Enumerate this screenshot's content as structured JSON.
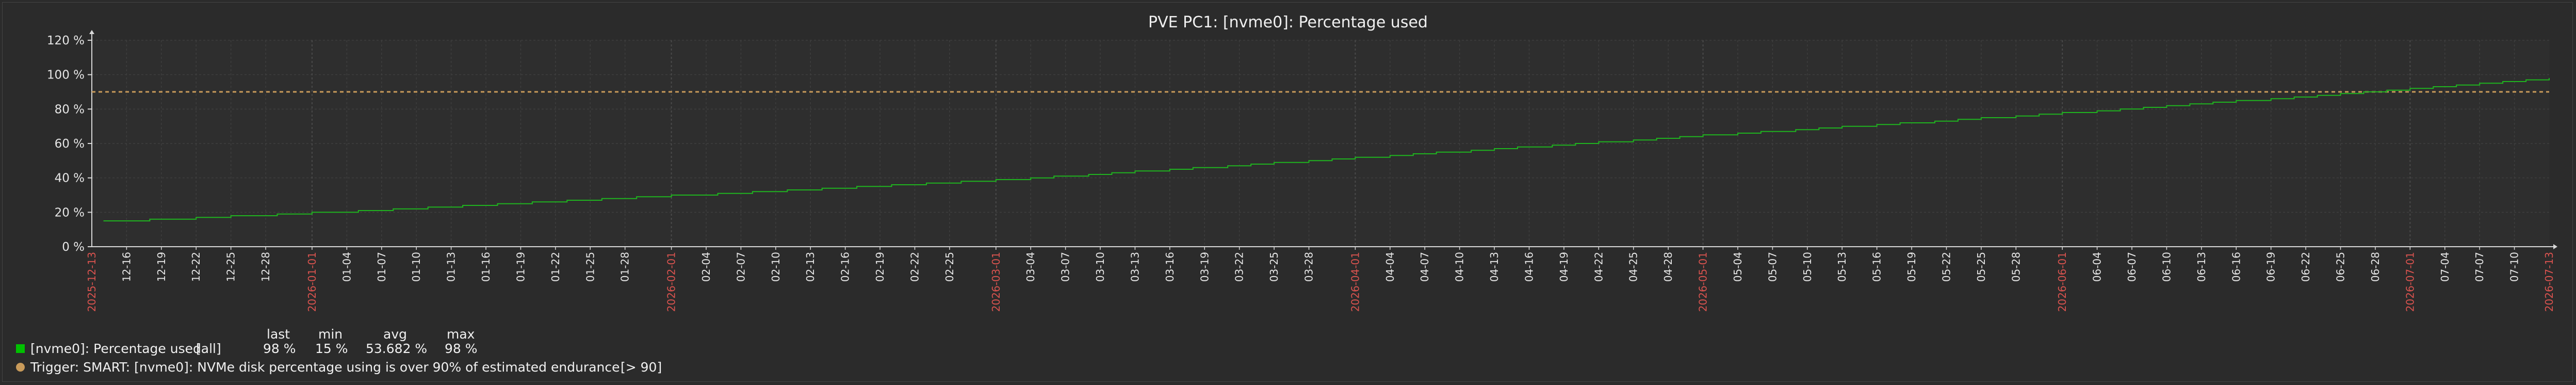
{
  "title": "PVE PC1: [nvme0]: Percentage used",
  "colors": {
    "background": "#2b2b2b",
    "grid": "#3e3e3e",
    "axis": "#d8d8d8",
    "series": "#1fb31f",
    "trigger": "#c89a5a",
    "month_label": "#d9534f",
    "tick_label": "#e6e6e6"
  },
  "chart_data": {
    "type": "line",
    "title": "PVE PC1: [nvme0]: Percentage used",
    "y_ticks": [
      "0 %",
      "20 %",
      "40 %",
      "60 %",
      "80 %",
      "100 %",
      "120 %"
    ],
    "ylim": [
      0,
      120
    ],
    "x_range": [
      "2025-12-13",
      "2026-07-13"
    ],
    "x_tick_labels": [
      "12-16",
      "12-19",
      "12-22",
      "12-25",
      "12-28",
      "2026-01-01",
      "01-04",
      "01-07",
      "01-10",
      "01-13",
      "01-16",
      "01-19",
      "01-22",
      "01-25",
      "01-28",
      "2026-02-01",
      "02-04",
      "02-07",
      "02-10",
      "02-13",
      "02-16",
      "02-19",
      "02-22",
      "02-25",
      "2026-03-01",
      "03-04",
      "03-07",
      "03-10",
      "03-13",
      "03-16",
      "03-19",
      "03-22",
      "03-25",
      "03-28",
      "2026-04-01",
      "04-04",
      "04-07",
      "04-10",
      "04-13",
      "04-16",
      "04-19",
      "04-22",
      "04-25",
      "04-28",
      "2026-05-01",
      "05-04",
      "05-07",
      "05-10",
      "05-13",
      "05-16",
      "05-19",
      "05-22",
      "05-25",
      "05-28",
      "2026-06-01",
      "06-04",
      "06-07",
      "06-10",
      "06-13",
      "06-16",
      "06-19",
      "06-22",
      "06-25",
      "06-28",
      "2026-07-01",
      "07-04",
      "07-07",
      "07-10"
    ],
    "x_edge_labels": [
      "2025-12-13",
      "2026-07-13"
    ],
    "grid": true,
    "series": [
      {
        "name": "[nvme0]: Percentage used",
        "x": [
          "2025-12-14",
          "2026-01-01",
          "2026-02-01",
          "2026-03-01",
          "2026-04-01",
          "2026-05-01",
          "2026-06-01",
          "2026-07-01",
          "2026-07-13"
        ],
        "y": [
          15,
          20,
          30,
          39,
          52,
          65,
          78,
          92,
          98
        ]
      }
    ],
    "threshold": {
      "name": "Trigger: SMART: [nvme0]: NVMe disk percentage using is over 90% of estimated endurance",
      "value": 90
    }
  },
  "legend": {
    "headers": {
      "last": "last",
      "min": "min",
      "avg": "avg",
      "max": "max"
    },
    "series_row": {
      "label": "[nvme0]: Percentage used",
      "func": "[all]",
      "last": "98 %",
      "min": "15 %",
      "avg": "53.682 %",
      "max": "98 %"
    },
    "trigger_row": {
      "label": "Trigger: SMART: [nvme0]: NVMe disk percentage using is over 90% of estimated endurance",
      "condition": "[> 90]"
    }
  }
}
